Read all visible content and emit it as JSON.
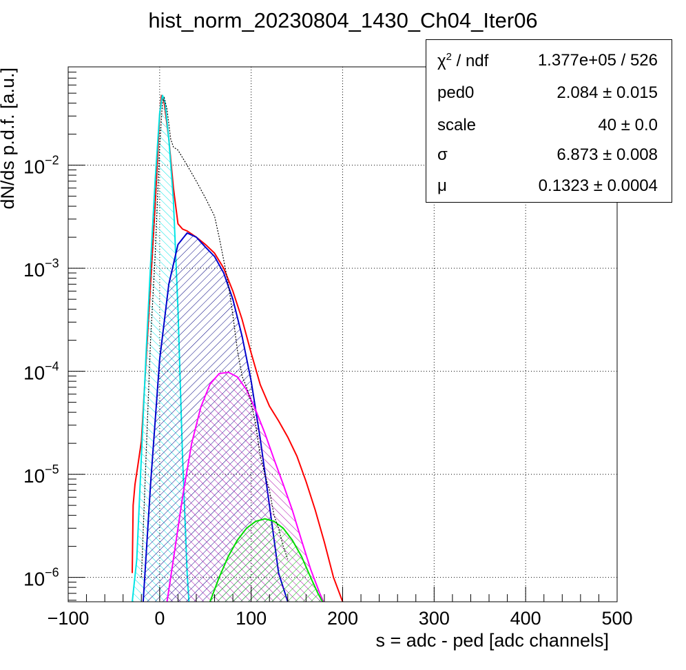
{
  "chart_data": {
    "type": "line",
    "title": "hist_norm_20230804_1430_Ch04_Iter06",
    "xlabel": "s = adc - ped [adc channels]",
    "ylabel": "dN/ds p.d.f. [a.u.]",
    "xlim": [
      -100,
      500
    ],
    "ylim": [
      5.8e-07,
      0.09
    ],
    "yscale": "log",
    "grid": true,
    "x_ticks": [
      "−100",
      "0",
      "100",
      "200",
      "300",
      "400",
      "500"
    ],
    "x_tick_values": [
      -100,
      0,
      100,
      200,
      300,
      400,
      500
    ],
    "y_ticks": [
      {
        "value": 1e-06,
        "base": "10",
        "exp": "−6"
      },
      {
        "value": 1e-05,
        "base": "10",
        "exp": "−5"
      },
      {
        "value": 0.0001,
        "base": "10",
        "exp": "−4"
      },
      {
        "value": 0.001,
        "base": "10",
        "exp": "−3"
      },
      {
        "value": 0.01,
        "base": "10",
        "exp": "−2"
      }
    ],
    "legend_position": "top-right",
    "stats": [
      {
        "name": "χ",
        "sup": "2",
        "name_rest": " / ndf",
        "value": "1.377e+05 / 526"
      },
      {
        "name": "ped0",
        "sup": "",
        "name_rest": "",
        "value": "2.084 ± 0.015"
      },
      {
        "name": "scale",
        "sup": "",
        "name_rest": "",
        "value": "40 ± 0.0"
      },
      {
        "name": "σ",
        "sup": "",
        "name_rest": "",
        "value": "6.873 ± 0.008"
      },
      {
        "name": "μ",
        "sup": "",
        "name_rest": "",
        "value": "0.1323 ± 0.0004"
      }
    ],
    "series": [
      {
        "color": "#ff0000",
        "fill": "none",
        "points": [
          [
            -30,
            1.1e-06
          ],
          [
            -29,
            5e-06
          ],
          [
            -27,
            8e-06
          ],
          [
            -24,
            1.2e-05
          ],
          [
            -20,
            2.1e-05
          ],
          [
            -15,
            0.00012
          ],
          [
            -10,
            0.0007
          ],
          [
            -5,
            0.004
          ],
          [
            0,
            0.03
          ],
          [
            2,
            0.048
          ],
          [
            5,
            0.04
          ],
          [
            10,
            0.018
          ],
          [
            15,
            0.006
          ],
          [
            20,
            0.0027
          ],
          [
            25,
            0.0024
          ],
          [
            30,
            0.0023
          ],
          [
            40,
            0.002
          ],
          [
            50,
            0.0017
          ],
          [
            60,
            0.0014
          ],
          [
            70,
            0.001
          ],
          [
            80,
            0.0006
          ],
          [
            90,
            0.00032
          ],
          [
            100,
            0.00015
          ],
          [
            110,
            7.4e-05
          ],
          [
            120,
            4.6e-05
          ],
          [
            130,
            3.3e-05
          ],
          [
            140,
            2.3e-05
          ],
          [
            150,
            1.5e-05
          ],
          [
            160,
            8.5e-06
          ],
          [
            170,
            4.5e-06
          ],
          [
            180,
            2.2e-06
          ],
          [
            190,
            1e-06
          ],
          [
            200,
            5.5e-07
          ]
        ]
      },
      {
        "color": "#00e5e5",
        "fill": "#00e5e5",
        "points": [
          [
            -30,
            5.8e-07
          ],
          [
            -25,
            1.5e-06
          ],
          [
            -20,
            1.5e-05
          ],
          [
            -15,
            0.00014
          ],
          [
            -10,
            0.0011
          ],
          [
            -5,
            0.007
          ],
          [
            0,
            0.032
          ],
          [
            3,
            0.048
          ],
          [
            6,
            0.04
          ],
          [
            10,
            0.018
          ],
          [
            15,
            0.0045
          ],
          [
            20,
            0.0004
          ],
          [
            25,
            1.5e-05
          ],
          [
            30,
            1.1e-06
          ],
          [
            32,
            5.8e-07
          ]
        ]
      },
      {
        "color": "#0000cc",
        "fill": "#000080",
        "points": [
          [
            -18,
            5.8e-07
          ],
          [
            -10,
            8e-06
          ],
          [
            0,
            0.00013
          ],
          [
            10,
            0.0007
          ],
          [
            20,
            0.0017
          ],
          [
            30,
            0.0022
          ],
          [
            40,
            0.002
          ],
          [
            50,
            0.0016
          ],
          [
            60,
            0.0013
          ],
          [
            70,
            0.0009
          ],
          [
            80,
            0.0005
          ],
          [
            90,
            0.00022
          ],
          [
            100,
            8e-05
          ],
          [
            110,
            2.2e-05
          ],
          [
            120,
            5e-06
          ],
          [
            130,
            1.1e-06
          ],
          [
            140,
            5.8e-07
          ]
        ]
      },
      {
        "color": "#ff00ff",
        "fill": "#aa00aa",
        "points": [
          [
            8,
            5.8e-07
          ],
          [
            15,
            1.5e-06
          ],
          [
            25,
            6e-06
          ],
          [
            35,
            2e-05
          ],
          [
            45,
            4.5e-05
          ],
          [
            55,
            7.5e-05
          ],
          [
            65,
            9.5e-05
          ],
          [
            75,
            9.8e-05
          ],
          [
            85,
            8.8e-05
          ],
          [
            95,
            6.6e-05
          ],
          [
            105,
            4.2e-05
          ],
          [
            115,
            2.5e-05
          ],
          [
            125,
            1.4e-05
          ],
          [
            135,
            8e-06
          ],
          [
            145,
            4.5e-06
          ],
          [
            155,
            2.3e-06
          ],
          [
            165,
            1.2e-06
          ],
          [
            175,
            7e-07
          ],
          [
            179,
            5.8e-07
          ]
        ]
      },
      {
        "color": "#00dd00",
        "fill": "#00cc00",
        "points": [
          [
            55,
            5.8e-07
          ],
          [
            65,
            1e-06
          ],
          [
            75,
            1.6e-06
          ],
          [
            85,
            2.3e-06
          ],
          [
            95,
            3e-06
          ],
          [
            105,
            3.5e-06
          ],
          [
            115,
            3.7e-06
          ],
          [
            125,
            3.5e-06
          ],
          [
            135,
            3e-06
          ],
          [
            145,
            2.3e-06
          ],
          [
            155,
            1.6e-06
          ],
          [
            165,
            1e-06
          ],
          [
            173,
            7e-07
          ],
          [
            178,
            5.8e-07
          ]
        ]
      },
      {
        "color": "#000000",
        "fill": "none",
        "dotted": true,
        "points": [
          [
            -20,
            1e-06
          ],
          [
            -10,
            0.0002
          ],
          [
            -5,
            0.0013
          ],
          [
            0,
            0.015
          ],
          [
            3,
            0.04
          ],
          [
            5,
            0.045
          ],
          [
            8,
            0.035
          ],
          [
            12,
            0.018
          ],
          [
            15,
            0.015
          ],
          [
            20,
            0.014
          ],
          [
            30,
            0.01
          ],
          [
            40,
            0.007
          ],
          [
            50,
            0.0048
          ],
          [
            60,
            0.0032
          ],
          [
            65,
            0.002
          ],
          [
            70,
            0.0012
          ],
          [
            75,
            0.0007
          ],
          [
            80,
            0.00035
          ],
          [
            85,
            0.00016
          ],
          [
            90,
            9e-05
          ],
          [
            95,
            7e-05
          ],
          [
            100,
            5e-05
          ],
          [
            105,
            3e-05
          ],
          [
            110,
            1.5e-05
          ],
          [
            115,
            1e-05
          ],
          [
            120,
            7e-06
          ],
          [
            125,
            4e-06
          ],
          [
            130,
            3e-06
          ],
          [
            135,
            2e-06
          ],
          [
            140,
            1.5e-06
          ]
        ]
      }
    ]
  }
}
